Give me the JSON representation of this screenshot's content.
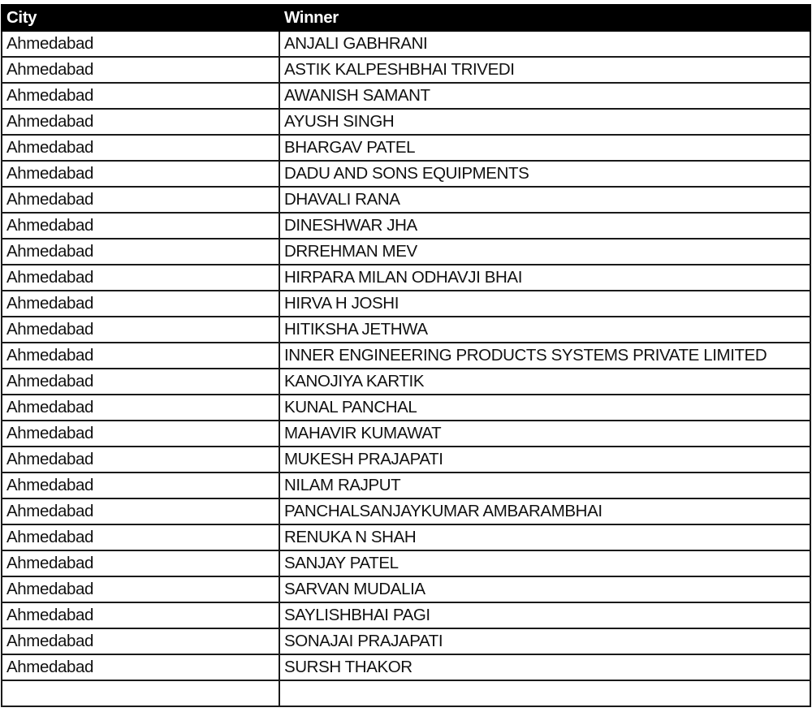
{
  "table": {
    "headers": [
      "City",
      "Winner"
    ],
    "rows": [
      [
        "Ahmedabad",
        "ANJALI GABHRANI"
      ],
      [
        "Ahmedabad",
        "ASTIK KALPESHBHAI TRIVEDI"
      ],
      [
        "Ahmedabad",
        "AWANISH SAMANT"
      ],
      [
        "Ahmedabad",
        "AYUSH SINGH"
      ],
      [
        "Ahmedabad",
        "BHARGAV PATEL"
      ],
      [
        "Ahmedabad",
        "DADU AND SONS EQUIPMENTS"
      ],
      [
        "Ahmedabad",
        "DHAVALI RANA"
      ],
      [
        "Ahmedabad",
        "DINESHWAR JHA"
      ],
      [
        "Ahmedabad",
        "DRREHMAN MEV"
      ],
      [
        "Ahmedabad",
        "HIRPARA MILAN ODHAVJI BHAI"
      ],
      [
        "Ahmedabad",
        "HIRVA H JOSHI"
      ],
      [
        "Ahmedabad",
        "HITIKSHA JETHWA"
      ],
      [
        "Ahmedabad",
        "INNER ENGINEERING PRODUCTS SYSTEMS PRIVATE LIMITED"
      ],
      [
        "Ahmedabad",
        "KANOJIYA KARTIK"
      ],
      [
        "Ahmedabad",
        "KUNAL PANCHAL"
      ],
      [
        "Ahmedabad",
        "MAHAVIR KUMAWAT"
      ],
      [
        "Ahmedabad",
        "MUKESH PRAJAPATI"
      ],
      [
        "Ahmedabad",
        "NILAM RAJPUT"
      ],
      [
        "Ahmedabad",
        "PANCHALSANJAYKUMAR AMBARAMBHAI"
      ],
      [
        "Ahmedabad",
        "RENUKA N SHAH"
      ],
      [
        "Ahmedabad",
        "SANJAY PATEL"
      ],
      [
        "Ahmedabad",
        "SARVAN MUDALIA"
      ],
      [
        "Ahmedabad",
        "SAYLISHBHAI PAGI"
      ],
      [
        "Ahmedabad",
        "SONAJAI PRAJAPATI"
      ],
      [
        "Ahmedabad",
        "SURSH THAKOR"
      ],
      [
        "",
        ""
      ]
    ]
  }
}
